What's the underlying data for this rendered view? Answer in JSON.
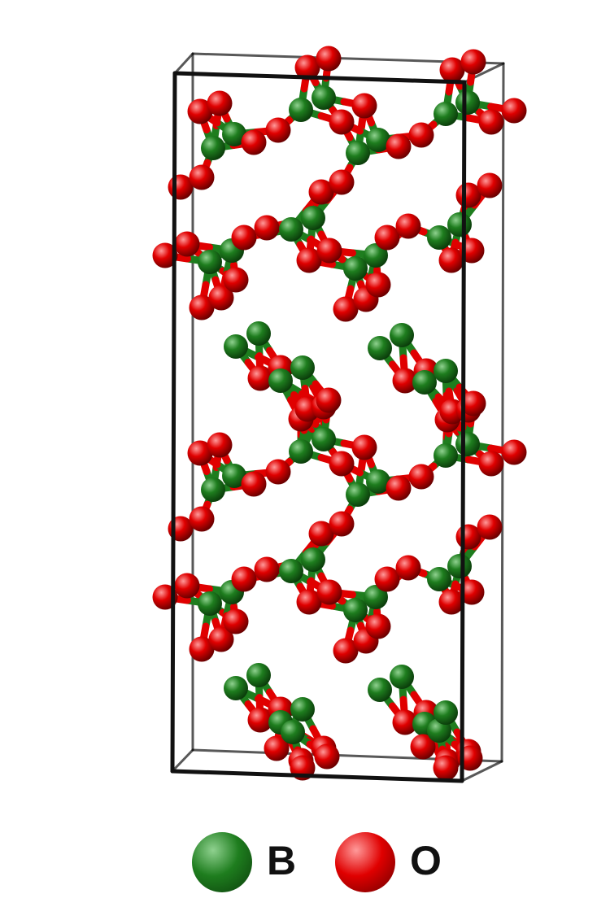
{
  "figure": {
    "elements": [
      {
        "symbol": "B",
        "color": "#1e7d1e",
        "highlight": "#8fd18f",
        "shade": "#0b3d0b"
      },
      {
        "symbol": "O",
        "color": "#e00000",
        "highlight": "#ff9a9a",
        "shade": "#6a0000"
      }
    ],
    "cell_color": "#111111"
  }
}
